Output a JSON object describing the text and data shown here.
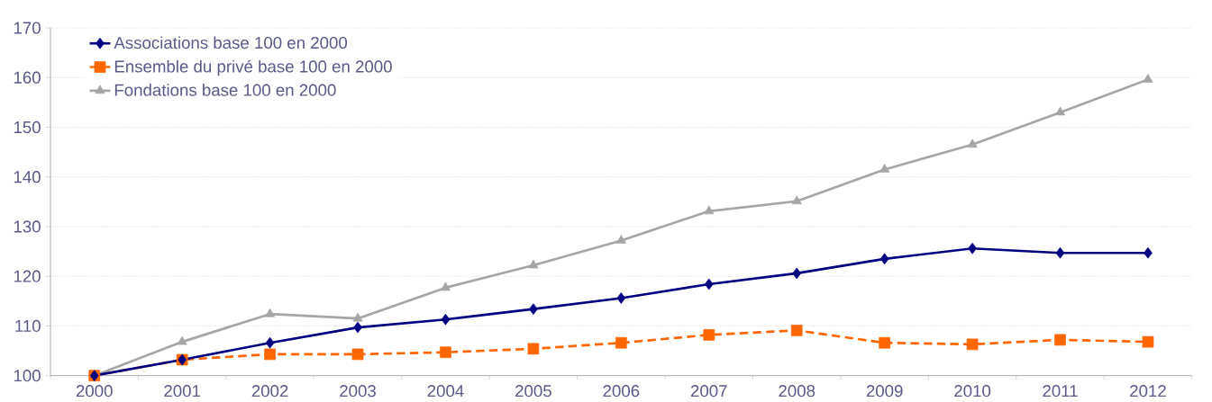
{
  "chart_data": {
    "type": "line",
    "categories": [
      "2000",
      "2001",
      "2002",
      "2003",
      "2004",
      "2005",
      "2006",
      "2007",
      "2008",
      "2009",
      "2010",
      "2011",
      "2012"
    ],
    "series": [
      {
        "name": "Associations base 100 en 2000",
        "color": "#000080",
        "marker": "diamond",
        "line_style": "solid",
        "values": [
          100,
          103.2,
          106.6,
          109.7,
          111.3,
          113.4,
          115.6,
          118.4,
          120.6,
          123.5,
          125.6,
          124.7,
          124.7
        ]
      },
      {
        "name": "Ensemble du privé base 100 en 2000",
        "color": "#ff6600",
        "marker": "square",
        "line_style": "dashed",
        "values": [
          100,
          103.2,
          104.3,
          104.3,
          104.7,
          105.4,
          106.6,
          108.2,
          109.1,
          106.6,
          106.3,
          107.2,
          106.8
        ]
      },
      {
        "name": "Fondations base 100 en 2000",
        "color": "#a6a6a6",
        "marker": "triangle",
        "line_style": "solid",
        "values": [
          100,
          106.8,
          112.4,
          111.5,
          117.7,
          122.2,
          127.2,
          133.1,
          135.1,
          141.5,
          146.5,
          153.0,
          159.6
        ]
      }
    ],
    "ylim": [
      100,
      170
    ],
    "yticks": [
      100,
      110,
      120,
      130,
      140,
      150,
      160,
      170
    ],
    "grid": "y",
    "legend": "top left"
  }
}
